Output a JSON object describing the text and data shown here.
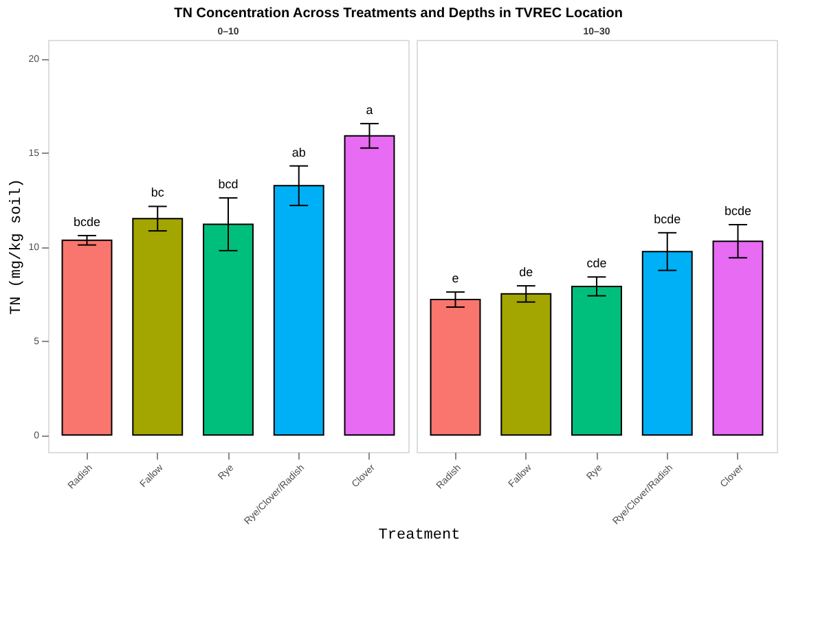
{
  "chart_data": [
    {
      "type": "bar",
      "title": "TN Concentration Across Treatments and Depths in TVREC Location",
      "subtitle": "0–10",
      "xlabel": "Treatment",
      "ylabel": "TN (mg/kg soil)",
      "categories": [
        "Radish",
        "Fallow",
        "Rye",
        "Rye/Clover/Radish",
        "Clover"
      ],
      "values": [
        10.35,
        11.5,
        11.2,
        13.25,
        15.9
      ],
      "errors": [
        0.25,
        0.65,
        1.4,
        1.05,
        0.65
      ],
      "colors": [
        "#f8766d",
        "#a3a500",
        "#00bf7d",
        "#00b0f6",
        "#e76bf3"
      ],
      "ylim": [
        -0.9,
        21
      ],
      "yticks": [
        0,
        5,
        10,
        15,
        20
      ],
      "grid": false,
      "value_labels": [
        "bcde",
        "bc",
        "bcd",
        "ab",
        "a"
      ]
    },
    {
      "type": "bar",
      "subtitle": "10–30",
      "categories": [
        "Radish",
        "Fallow",
        "Rye",
        "Rye/Clover/Radish",
        "Clover"
      ],
      "values": [
        7.2,
        7.5,
        7.9,
        9.75,
        10.3
      ],
      "errors": [
        0.4,
        0.43,
        0.5,
        1.0,
        0.88
      ],
      "colors": [
        "#f8766d",
        "#a3a500",
        "#00bf7d",
        "#00b0f6",
        "#e76bf3"
      ],
      "ylim": [
        -0.9,
        21
      ],
      "yticks": [
        0,
        5,
        10,
        15,
        20
      ],
      "grid": false,
      "tick_labels": "x",
      "value_labels": [
        "e",
        "de",
        "cde",
        "bcde",
        "bcde"
      ]
    }
  ]
}
